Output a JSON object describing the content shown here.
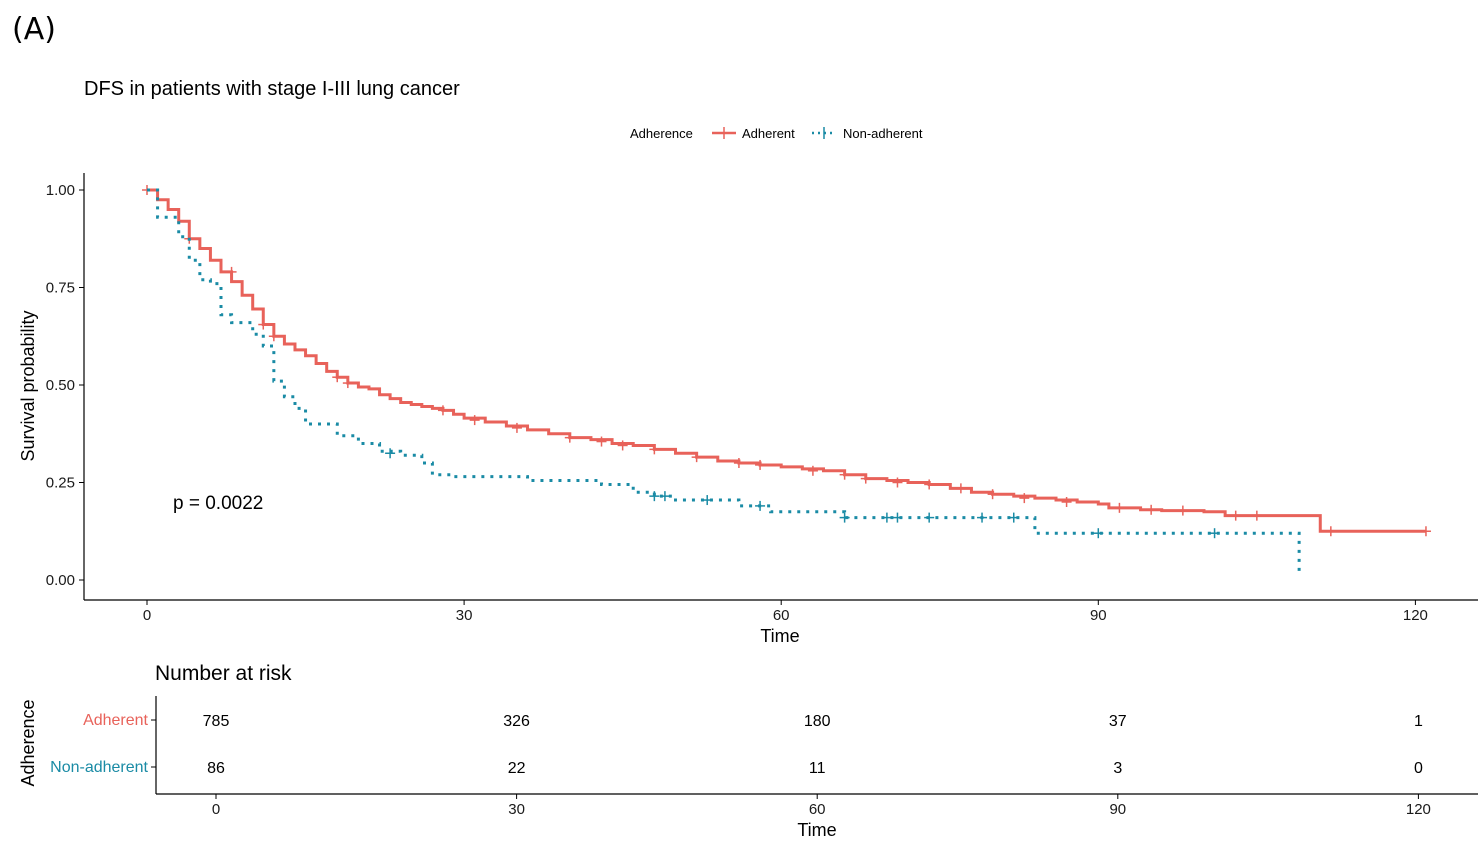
{
  "panel_label": "(A)",
  "chart_data": {
    "type": "line",
    "title": "DFS in patients with stage I-III lung cancer",
    "xlabel": "Time",
    "ylabel": "Survival probability",
    "xlim": [
      0,
      121
    ],
    "ylim": [
      0,
      1
    ],
    "x_ticks": [
      0,
      30,
      60,
      90,
      120
    ],
    "y_ticks": [
      0.0,
      0.25,
      0.5,
      0.75,
      1.0
    ],
    "y_tick_labels": [
      "0.00",
      "0.25",
      "0.50",
      "0.75",
      "1.00"
    ],
    "grid": false,
    "legend": {
      "title": "Adherence",
      "position": "top",
      "entries": [
        "Adherent",
        "Non-adherent"
      ]
    },
    "annotation": "p = 0.0022",
    "series": [
      {
        "name": "Adherent",
        "color": "#E8625A",
        "line_style": "solid",
        "steps": [
          [
            0,
            1.0
          ],
          [
            1,
            0.975
          ],
          [
            2,
            0.95
          ],
          [
            3,
            0.92
          ],
          [
            4,
            0.875
          ],
          [
            5,
            0.85
          ],
          [
            6,
            0.82
          ],
          [
            7,
            0.79
          ],
          [
            8,
            0.765
          ],
          [
            9,
            0.73
          ],
          [
            10,
            0.695
          ],
          [
            11,
            0.655
          ],
          [
            12,
            0.625
          ],
          [
            13,
            0.605
          ],
          [
            14,
            0.59
          ],
          [
            15,
            0.575
          ],
          [
            16,
            0.555
          ],
          [
            17,
            0.535
          ],
          [
            18,
            0.52
          ],
          [
            19,
            0.505
          ],
          [
            20,
            0.495
          ],
          [
            21,
            0.49
          ],
          [
            22,
            0.475
          ],
          [
            23,
            0.465
          ],
          [
            24,
            0.455
          ],
          [
            25,
            0.45
          ],
          [
            26,
            0.445
          ],
          [
            27,
            0.44
          ],
          [
            28,
            0.435
          ],
          [
            29,
            0.425
          ],
          [
            30,
            0.415
          ],
          [
            32,
            0.405
          ],
          [
            34,
            0.395
          ],
          [
            36,
            0.385
          ],
          [
            38,
            0.375
          ],
          [
            40,
            0.365
          ],
          [
            42,
            0.36
          ],
          [
            44,
            0.35
          ],
          [
            46,
            0.345
          ],
          [
            48,
            0.335
          ],
          [
            50,
            0.325
          ],
          [
            52,
            0.315
          ],
          [
            54,
            0.305
          ],
          [
            56,
            0.3
          ],
          [
            58,
            0.295
          ],
          [
            60,
            0.29
          ],
          [
            62,
            0.285
          ],
          [
            64,
            0.28
          ],
          [
            66,
            0.27
          ],
          [
            68,
            0.26
          ],
          [
            70,
            0.255
          ],
          [
            72,
            0.25
          ],
          [
            74,
            0.245
          ],
          [
            76,
            0.235
          ],
          [
            78,
            0.225
          ],
          [
            80,
            0.22
          ],
          [
            82,
            0.215
          ],
          [
            84,
            0.21
          ],
          [
            86,
            0.205
          ],
          [
            88,
            0.2
          ],
          [
            90,
            0.195
          ],
          [
            91,
            0.185
          ],
          [
            94,
            0.18
          ],
          [
            96,
            0.178
          ],
          [
            100,
            0.175
          ],
          [
            102,
            0.165
          ],
          [
            106,
            0.165
          ],
          [
            111,
            0.125
          ],
          [
            121,
            0.125
          ]
        ],
        "censors": [
          [
            0,
            1.0
          ],
          [
            4,
            0.875
          ],
          [
            8,
            0.79
          ],
          [
            11,
            0.655
          ],
          [
            12,
            0.625
          ],
          [
            18,
            0.52
          ],
          [
            19,
            0.505
          ],
          [
            28,
            0.435
          ],
          [
            31,
            0.41
          ],
          [
            35,
            0.39
          ],
          [
            40,
            0.365
          ],
          [
            43,
            0.355
          ],
          [
            45,
            0.345
          ],
          [
            48,
            0.335
          ],
          [
            52,
            0.315
          ],
          [
            56,
            0.3
          ],
          [
            58,
            0.295
          ],
          [
            63,
            0.28
          ],
          [
            66,
            0.27
          ],
          [
            68,
            0.26
          ],
          [
            71,
            0.25
          ],
          [
            74,
            0.245
          ],
          [
            77,
            0.235
          ],
          [
            80,
            0.22
          ],
          [
            83,
            0.21
          ],
          [
            87,
            0.2
          ],
          [
            92,
            0.185
          ],
          [
            95,
            0.18
          ],
          [
            98,
            0.178
          ],
          [
            103,
            0.165
          ],
          [
            105,
            0.165
          ],
          [
            112,
            0.125
          ],
          [
            121,
            0.125
          ]
        ]
      },
      {
        "name": "Non-adherent",
        "color": "#1A8BA5",
        "line_style": "dotted",
        "steps": [
          [
            0,
            1.0
          ],
          [
            1,
            0.93
          ],
          [
            3,
            0.88
          ],
          [
            4,
            0.82
          ],
          [
            5,
            0.77
          ],
          [
            6,
            0.76
          ],
          [
            7,
            0.68
          ],
          [
            8,
            0.66
          ],
          [
            10,
            0.63
          ],
          [
            11,
            0.6
          ],
          [
            12,
            0.51
          ],
          [
            13,
            0.47
          ],
          [
            14,
            0.44
          ],
          [
            15,
            0.4
          ],
          [
            18,
            0.37
          ],
          [
            20,
            0.35
          ],
          [
            22,
            0.33
          ],
          [
            24,
            0.32
          ],
          [
            26,
            0.3
          ],
          [
            27,
            0.27
          ],
          [
            29,
            0.265
          ],
          [
            36,
            0.255
          ],
          [
            43,
            0.245
          ],
          [
            46,
            0.225
          ],
          [
            48,
            0.215
          ],
          [
            50,
            0.205
          ],
          [
            54,
            0.205
          ],
          [
            56,
            0.19
          ],
          [
            59,
            0.175
          ],
          [
            66,
            0.16
          ],
          [
            84,
            0.12
          ],
          [
            108,
            0.12
          ],
          [
            109,
            0.01
          ]
        ],
        "censors": [
          [
            23,
            0.325
          ],
          [
            48,
            0.215
          ],
          [
            49,
            0.215
          ],
          [
            53,
            0.205
          ],
          [
            58,
            0.19
          ],
          [
            66,
            0.16
          ],
          [
            70,
            0.16
          ],
          [
            71,
            0.16
          ],
          [
            74,
            0.16
          ],
          [
            79,
            0.16
          ],
          [
            82,
            0.16
          ],
          [
            90,
            0.12
          ],
          [
            101,
            0.12
          ]
        ]
      }
    ],
    "risk_table": {
      "title": "Number at risk",
      "y_title": "Adherence",
      "xlabel": "Time",
      "times": [
        0,
        30,
        60,
        90,
        120
      ],
      "rows": [
        {
          "name": "Adherent",
          "color": "#E8625A",
          "values": [
            785,
            326,
            180,
            37,
            1
          ]
        },
        {
          "name": "Non-adherent",
          "color": "#1A8BA5",
          "values": [
            86,
            22,
            11,
            3,
            0
          ]
        }
      ]
    }
  }
}
